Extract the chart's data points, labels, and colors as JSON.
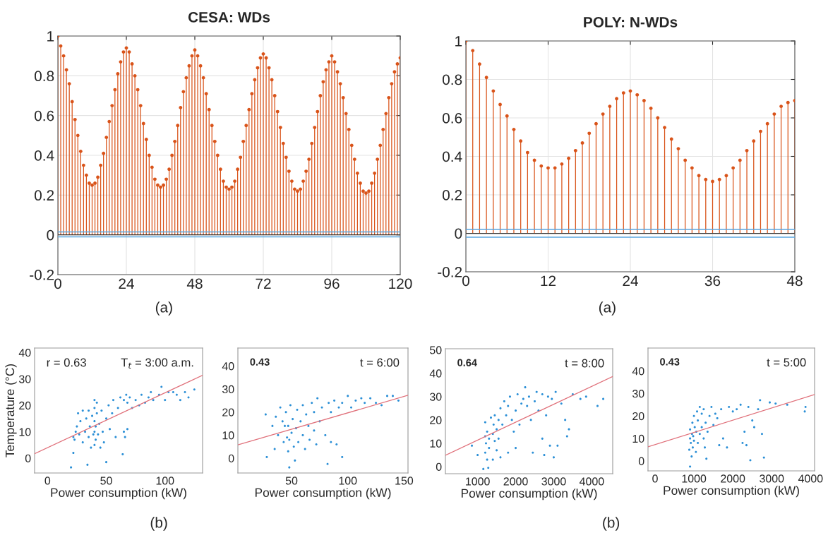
{
  "chart_data": [
    {
      "type": "lollipop",
      "title": "CESA: WDs",
      "marker": "circle",
      "grid": true,
      "x": [
        0,
        1,
        2,
        3,
        4,
        5,
        6,
        7,
        8,
        9,
        10,
        11,
        12,
        13,
        14,
        15,
        16,
        17,
        18,
        19,
        20,
        21,
        22,
        23,
        24,
        25,
        26,
        27,
        28,
        29,
        30,
        31,
        32,
        33,
        34,
        35,
        36,
        37,
        38,
        39,
        40,
        41,
        42,
        43,
        44,
        45,
        46,
        47,
        48,
        49,
        50,
        51,
        52,
        53,
        54,
        55,
        56,
        57,
        58,
        59,
        60,
        61,
        62,
        63,
        64,
        65,
        66,
        67,
        68,
        69,
        70,
        71,
        72,
        73,
        74,
        75,
        76,
        77,
        78,
        79,
        80,
        81,
        82,
        83,
        84,
        85,
        86,
        87,
        88,
        89,
        90,
        91,
        92,
        93,
        94,
        95,
        96,
        97,
        98,
        99,
        100,
        101,
        102,
        103,
        104,
        105,
        106,
        107,
        108,
        109,
        110,
        111,
        112,
        113,
        114,
        115,
        116,
        117,
        118,
        119,
        120
      ],
      "series": [
        {
          "color": "#d95319",
          "values": [
            1.0,
            0.95,
            0.9,
            0.83,
            0.76,
            0.67,
            0.58,
            0.5,
            0.42,
            0.35,
            0.3,
            0.26,
            0.25,
            0.26,
            0.29,
            0.35,
            0.41,
            0.49,
            0.57,
            0.65,
            0.73,
            0.81,
            0.87,
            0.92,
            0.94,
            0.92,
            0.86,
            0.8,
            0.73,
            0.65,
            0.56,
            0.48,
            0.4,
            0.34,
            0.28,
            0.25,
            0.24,
            0.25,
            0.28,
            0.33,
            0.4,
            0.47,
            0.55,
            0.64,
            0.72,
            0.79,
            0.85,
            0.9,
            0.93,
            0.9,
            0.85,
            0.79,
            0.71,
            0.63,
            0.55,
            0.47,
            0.4,
            0.33,
            0.27,
            0.24,
            0.23,
            0.24,
            0.27,
            0.33,
            0.39,
            0.47,
            0.55,
            0.63,
            0.71,
            0.78,
            0.84,
            0.89,
            0.91,
            0.89,
            0.84,
            0.78,
            0.7,
            0.62,
            0.54,
            0.46,
            0.39,
            0.32,
            0.27,
            0.23,
            0.22,
            0.23,
            0.27,
            0.32,
            0.38,
            0.46,
            0.54,
            0.62,
            0.7,
            0.77,
            0.83,
            0.87,
            0.9,
            0.87,
            0.82,
            0.76,
            0.69,
            0.61,
            0.53,
            0.45,
            0.38,
            0.31,
            0.26,
            0.22,
            0.21,
            0.22,
            0.26,
            0.31,
            0.38,
            0.45,
            0.53,
            0.61,
            0.69,
            0.76,
            0.82,
            0.86,
            0.89
          ]
        }
      ],
      "ref_lines": [
        {
          "axis": "y",
          "value": 0.015,
          "color": "#5aa6e0",
          "line_style": "solid"
        },
        {
          "axis": "y",
          "value": -0.01,
          "color": "#5aa6e0",
          "line_style": "solid"
        }
      ],
      "xlim": [
        0,
        120
      ],
      "xticks": [
        0,
        24,
        48,
        72,
        96,
        120
      ],
      "ylim": [
        -0.2,
        1
      ],
      "yticks": [
        -0.2,
        0,
        0.2,
        0.4,
        0.6,
        0.8,
        1
      ],
      "annotations": [
        "(a)"
      ]
    },
    {
      "type": "lollipop",
      "title": "POLY: N-WDs",
      "marker": "circle",
      "grid": true,
      "x": [
        0,
        1,
        2,
        3,
        4,
        5,
        6,
        7,
        8,
        9,
        10,
        11,
        12,
        13,
        14,
        15,
        16,
        17,
        18,
        19,
        20,
        21,
        22,
        23,
        24,
        25,
        26,
        27,
        28,
        29,
        30,
        31,
        32,
        33,
        34,
        35,
        36,
        37,
        38,
        39,
        40,
        41,
        42,
        43,
        44,
        45,
        46,
        47,
        48
      ],
      "series": [
        {
          "color": "#d95319",
          "values": [
            1.0,
            0.95,
            0.88,
            0.81,
            0.74,
            0.67,
            0.61,
            0.54,
            0.48,
            0.42,
            0.38,
            0.35,
            0.34,
            0.34,
            0.36,
            0.39,
            0.43,
            0.47,
            0.52,
            0.57,
            0.62,
            0.66,
            0.7,
            0.73,
            0.74,
            0.72,
            0.69,
            0.65,
            0.6,
            0.55,
            0.49,
            0.44,
            0.38,
            0.34,
            0.3,
            0.28,
            0.27,
            0.28,
            0.3,
            0.34,
            0.38,
            0.43,
            0.48,
            0.53,
            0.57,
            0.62,
            0.66,
            0.68,
            0.69
          ]
        }
      ],
      "ref_lines": [
        {
          "axis": "y",
          "value": 0.02,
          "color": "#5aa6e0",
          "line_style": "solid"
        },
        {
          "axis": "y",
          "value": -0.02,
          "color": "#5aa6e0",
          "line_style": "solid"
        }
      ],
      "xlim": [
        0,
        48
      ],
      "xticks": [
        0,
        12,
        24,
        36,
        48
      ],
      "ylim": [
        -0.2,
        1
      ],
      "yticks": [
        -0.2,
        0,
        0.2,
        0.4,
        0.6,
        0.8,
        1
      ],
      "annotations": [
        "(a)"
      ]
    },
    {
      "type": "scatter",
      "xlabel": "Power consumption (kW)",
      "ylabel": "Temperature (°C)",
      "marker": "circle",
      "series": [
        {
          "color": "#2b8fd6",
          "x": [
            20,
            22,
            23,
            24,
            25,
            26,
            22,
            27,
            28,
            30,
            30,
            32,
            33,
            34,
            35,
            35,
            36,
            37,
            38,
            39,
            40,
            40,
            40,
            40,
            40,
            41,
            41,
            42,
            42,
            43,
            44,
            45,
            46,
            47,
            48,
            50,
            50,
            52,
            53,
            55,
            56,
            58,
            60,
            62,
            64,
            65,
            65,
            66,
            67,
            68,
            68,
            70,
            72,
            75,
            78,
            80,
            83,
            86,
            88,
            90,
            95,
            97,
            100,
            103,
            107,
            110,
            113,
            117,
            120,
            125
          ],
          "values": [
            -3.5,
            2,
            7,
            10,
            12,
            17,
            8,
            9,
            14,
            6,
            18,
            10,
            15,
            -2.5,
            8,
            18,
            12,
            4,
            16,
            9,
            5,
            10,
            14,
            19,
            22,
            7,
            12,
            17,
            21,
            9,
            13,
            4,
            18,
            10,
            6,
            -1.5,
            15,
            20,
            11,
            17,
            22,
            8,
            19,
            23,
            1.5,
            10,
            22,
            8,
            24,
            21,
            11,
            23,
            19,
            22,
            20,
            24,
            21,
            23,
            25,
            22,
            24,
            27,
            22,
            25,
            25,
            24,
            22,
            25,
            23,
            26
          ]
        },
        {
          "type": "line",
          "marker": "none",
          "color": "#e0707a",
          "x": [
            -11,
            132
          ],
          "values": [
            1.7,
            31.4
          ]
        }
      ],
      "xlim": [
        -11,
        132
      ],
      "xticks": [
        0,
        50,
        100
      ],
      "ylim": [
        -5.6,
        41.7
      ],
      "yticks": [
        0,
        10,
        20,
        30,
        40
      ],
      "annotations": [
        "r = 0.63",
        "T$_{t}$ = 3:00 a.m.",
        "(b)"
      ]
    },
    {
      "type": "scatter",
      "xlabel": "Power consumption (kW)",
      "marker": "circle",
      "series": [
        {
          "color": "#2b8fd6",
          "x": [
            27,
            28,
            33,
            35,
            36,
            38,
            40,
            42,
            43,
            44,
            45,
            46,
            47,
            47,
            48,
            48,
            49,
            50,
            51,
            52,
            53,
            54,
            55,
            56,
            58,
            60,
            60,
            62,
            63,
            65,
            66,
            68,
            70,
            70,
            72,
            73,
            75,
            77,
            80,
            82,
            83,
            85,
            85,
            88,
            90,
            92,
            95,
            95,
            100,
            103,
            107,
            112,
            115,
            120,
            125,
            130,
            135,
            140,
            145
          ],
          "values": [
            19,
            0.5,
            14,
            4,
            18,
            10,
            22,
            16,
            7,
            14,
            20,
            9,
            3,
            14,
            8,
            -4,
            23,
            11,
            17,
            5,
            -1,
            13,
            21,
            7,
            16,
            23,
            10,
            4,
            19,
            14,
            8,
            24,
            12,
            20,
            6,
            26,
            16,
            22,
            10,
            -2.5,
            24,
            7,
            20,
            25,
            6,
            22,
            0.5,
            24,
            27,
            22,
            25,
            26,
            24,
            26,
            24,
            23,
            27,
            27,
            25
          ]
        },
        {
          "type": "line",
          "marker": "none",
          "color": "#e0707a",
          "x": [
            2.3,
            153.5
          ],
          "values": [
            5.8,
            27.3
          ]
        }
      ],
      "xlim": [
        2.3,
        153.5
      ],
      "xticks": [
        50,
        100,
        150
      ],
      "ylim": [
        -6.4,
        47.8
      ],
      "yticks": [
        0,
        10,
        20,
        30,
        40
      ],
      "annotations": [
        "0.43",
        "t = 6:00"
      ]
    },
    {
      "type": "scatter",
      "xlabel": "Power consumption (kW)",
      "marker": "circle",
      "series": [
        {
          "color": "#2b8fd6",
          "x": [
            850,
            1000,
            1150,
            1200,
            1200,
            1200,
            1220,
            1250,
            1250,
            1280,
            1300,
            1300,
            1350,
            1400,
            1400,
            1420,
            1450,
            1450,
            1500,
            1500,
            1550,
            1550,
            1600,
            1600,
            1650,
            1700,
            1750,
            1800,
            1800,
            1850,
            1900,
            1950,
            2000,
            2000,
            2050,
            2100,
            2150,
            2200,
            2250,
            2300,
            2350,
            2400,
            2450,
            2500,
            2550,
            2600,
            2700,
            2700,
            2750,
            2800,
            2850,
            2900,
            2950,
            3000,
            3050,
            3100,
            3200,
            3300,
            3350,
            3400,
            3500,
            3700,
            3850,
            4150,
            4300
          ],
          "values": [
            9,
            5,
            -1,
            6,
            13,
            19,
            10,
            15,
            3,
            -0.5,
            12,
            8,
            21,
            14,
            3,
            18,
            11,
            22,
            7,
            16,
            12,
            20,
            4,
            25,
            18,
            28,
            22,
            6,
            26,
            30,
            20,
            15,
            24,
            8,
            31,
            18,
            27,
            29,
            34,
            26,
            30,
            20,
            6,
            28,
            32,
            24,
            31,
            12,
            5,
            22,
            30,
            9,
            29,
            4,
            32,
            9,
            27,
            20,
            13,
            16,
            31,
            29,
            30,
            26,
            29
          ]
        },
        {
          "type": "line",
          "marker": "none",
          "color": "#e0707a",
          "x": [
            154,
            4549
          ],
          "values": [
            4.9,
            38.6
          ]
        }
      ],
      "xlim": [
        154,
        4549
      ],
      "xticks": [
        1000,
        2000,
        3000,
        4000
      ],
      "ylim": [
        -3,
        50.5
      ],
      "yticks": [
        0,
        10,
        20,
        30,
        40,
        50
      ],
      "annotations": [
        "0.64",
        "t = 8:00",
        "(b)"
      ]
    },
    {
      "type": "scatter",
      "xlabel": "Power consumption (kW)",
      "marker": "circle",
      "series": [
        {
          "color": "#2b8fd6",
          "x": [
            900,
            880,
            900,
            900,
            920,
            940,
            950,
            960,
            970,
            980,
            1000,
            1000,
            1020,
            1050,
            1060,
            1080,
            1100,
            1100,
            1150,
            1150,
            1200,
            1200,
            1250,
            1250,
            1280,
            1300,
            1320,
            1350,
            1400,
            1450,
            1500,
            1550,
            1600,
            1650,
            1700,
            1750,
            1850,
            1900,
            2000,
            2100,
            2200,
            2250,
            2300,
            2350,
            2400,
            2450,
            2500,
            2550,
            2650,
            2700,
            2750,
            2800,
            2950,
            3100,
            3400,
            3850,
            3870
          ],
          "values": [
            -2.5,
            5,
            10,
            14,
            8,
            2,
            12,
            17,
            6,
            11,
            20,
            9,
            15,
            4,
            13,
            22,
            18,
            8,
            24,
            12,
            21,
            15,
            10,
            23,
            6,
            17,
            1,
            13,
            20,
            24,
            16,
            21,
            19,
            7,
            23,
            10,
            6,
            24,
            22,
            23,
            25,
            8,
            13,
            7,
            24,
            0.3,
            18,
            15,
            23,
            27,
            12,
            1.5,
            26,
            25.5,
            25,
            22,
            24
          ]
        },
        {
          "type": "line",
          "marker": "none",
          "color": "#e0707a",
          "x": [
            -182,
            4103
          ],
          "values": [
            6.3,
            29.5
          ]
        }
      ],
      "xlim": [
        -182,
        4103
      ],
      "xticks": [
        0,
        1000,
        2000,
        3000,
        4000
      ],
      "ylim": [
        -4.4,
        50.2
      ],
      "yticks": [
        0,
        10,
        20,
        30,
        40
      ],
      "annotations": [
        "0.43",
        "t = 5:00"
      ]
    }
  ]
}
